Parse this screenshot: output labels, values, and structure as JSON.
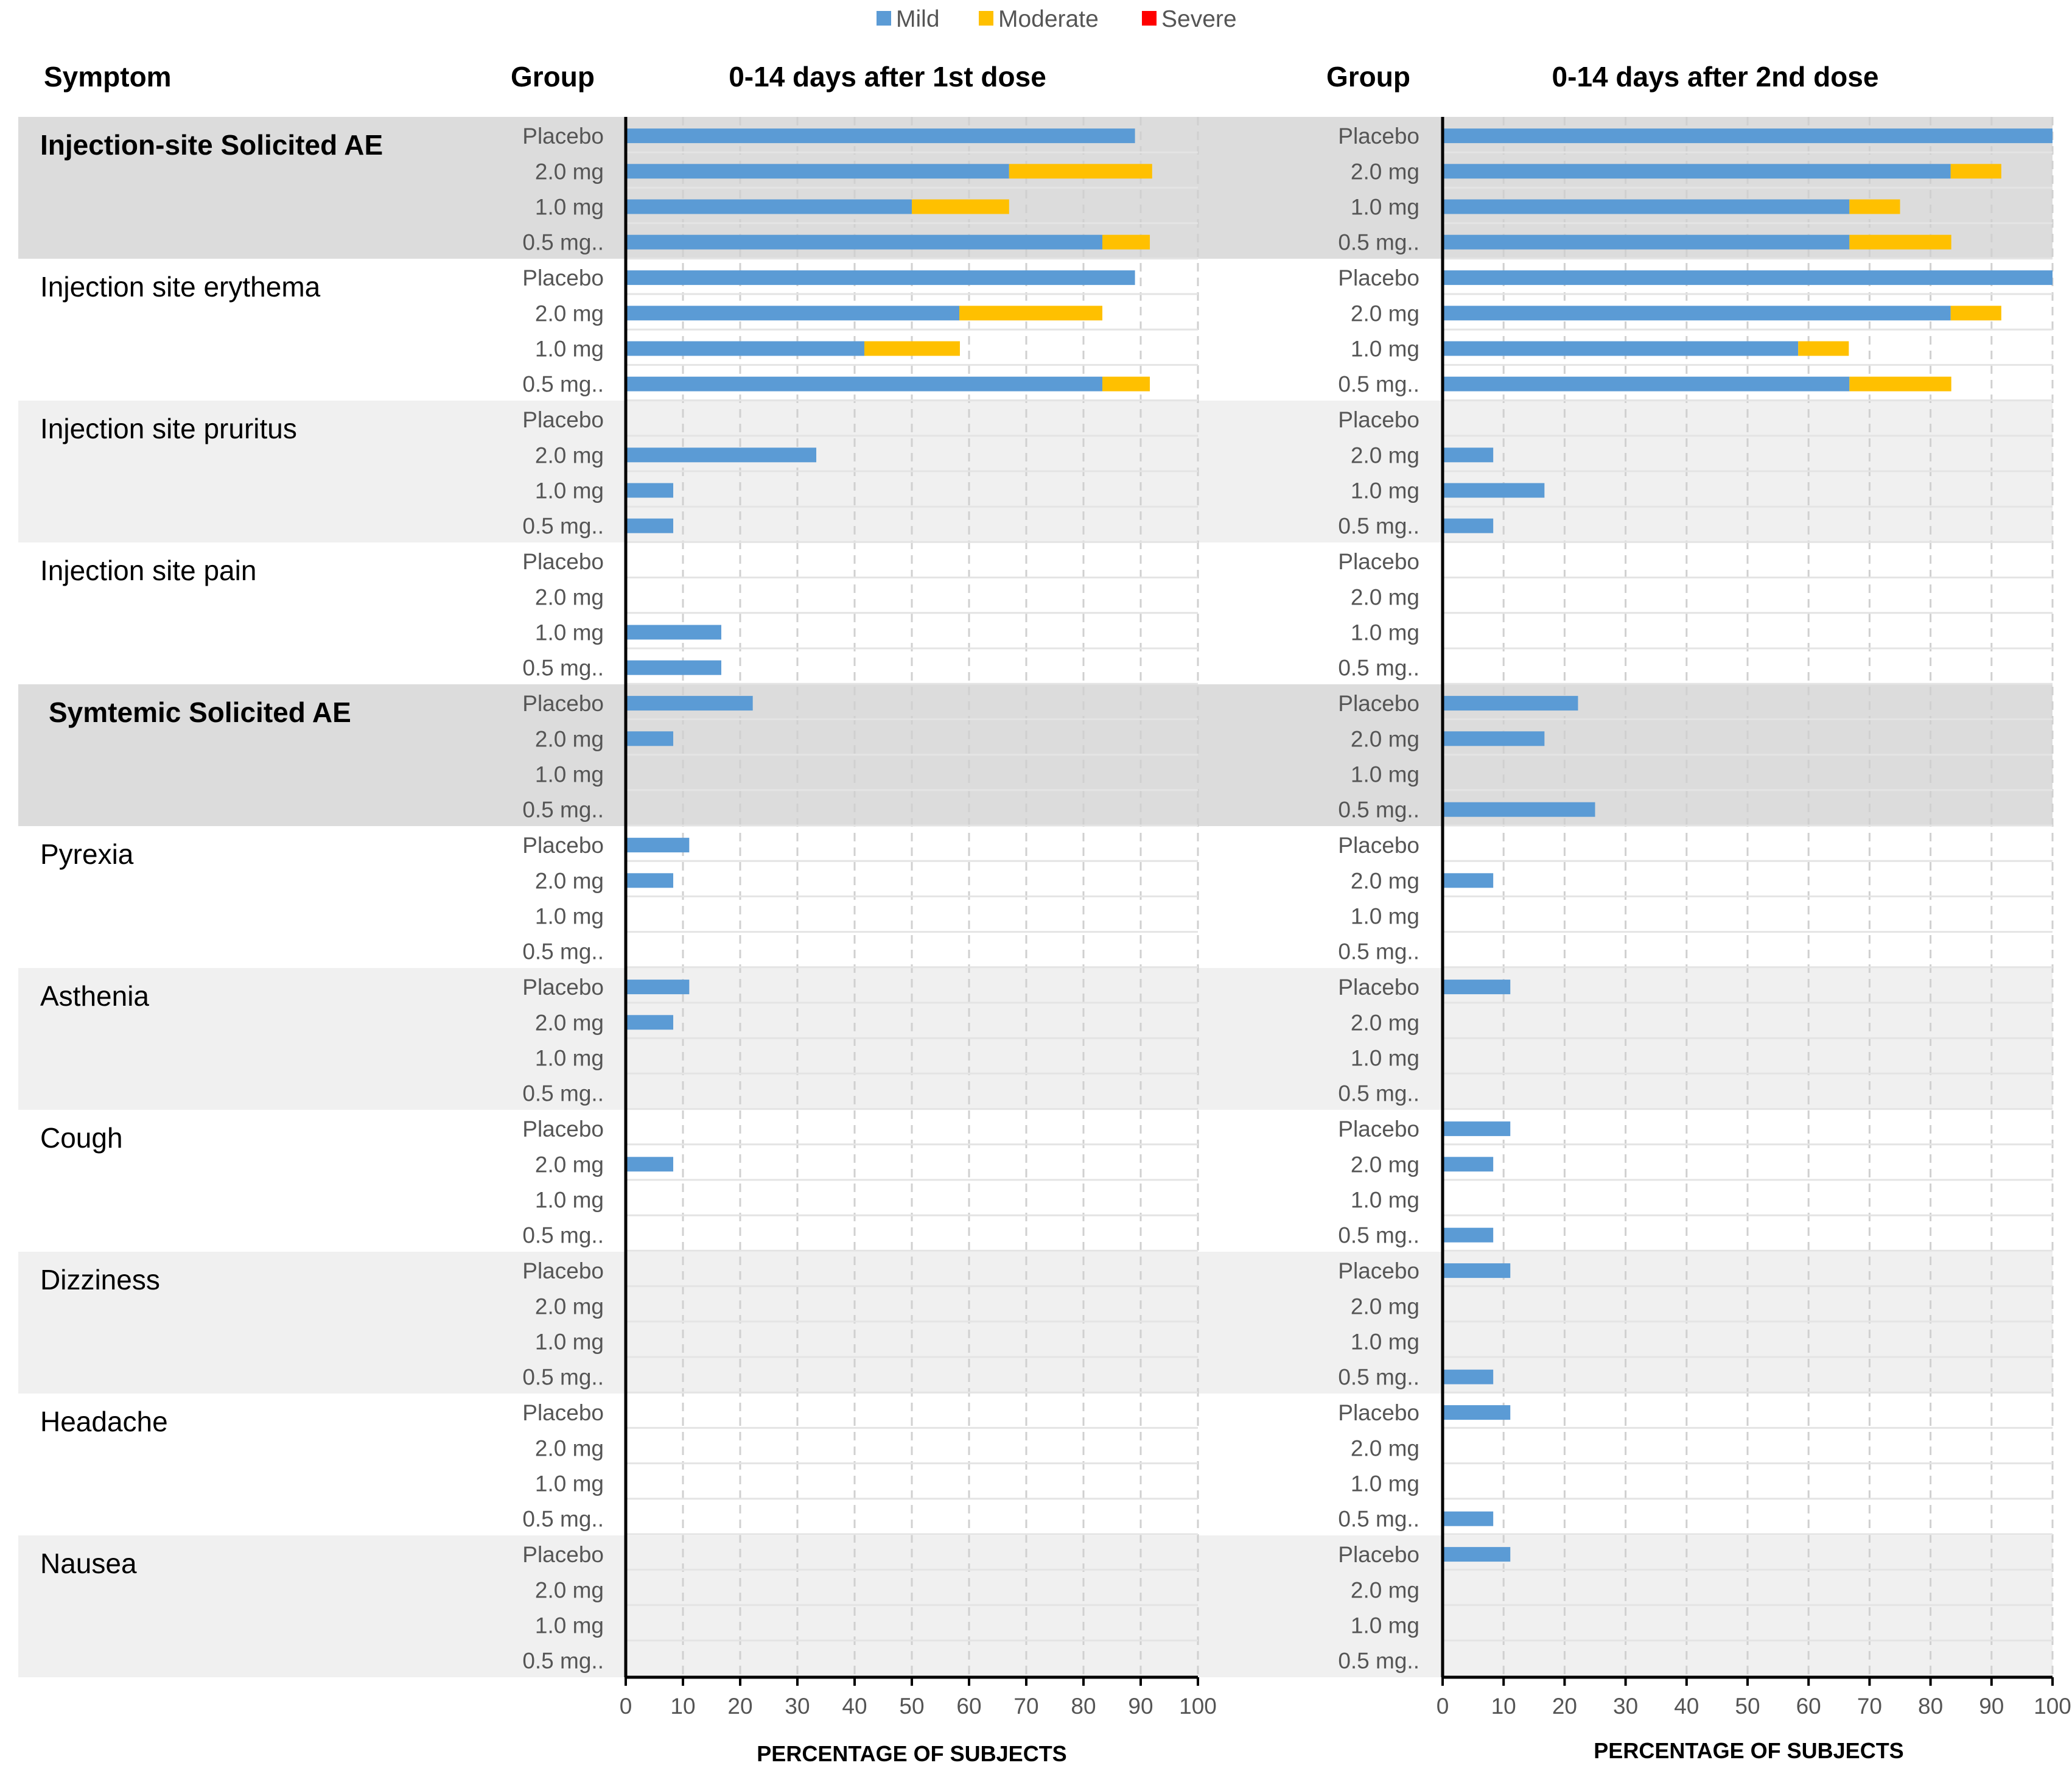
{
  "legend": [
    {
      "label": "Mild",
      "color": "#5B9BD5"
    },
    {
      "label": "Moderate",
      "color": "#FFC000"
    },
    {
      "label": "Severe",
      "color": "#FF0000"
    }
  ],
  "headers": {
    "symptom": "Symptom",
    "group": "Group",
    "dose1_title": "0-14 days after 1st dose",
    "dose2_title": "0-14 days after 2nd dose"
  },
  "chart_data": {
    "type": "bar",
    "orientation": "horizontal",
    "stacked": true,
    "xlabel": "PERCENTAGE OF SUBJECTS",
    "xlim": [
      0,
      100
    ],
    "xticks": [
      0,
      10,
      20,
      30,
      40,
      50,
      60,
      70,
      80,
      90,
      100
    ],
    "groups": [
      "Placebo",
      "2.0 mg",
      "1.0 mg",
      "0.5 mg.."
    ],
    "series_names": [
      "Mild",
      "Moderate",
      "Severe"
    ],
    "symptoms": [
      {
        "name": "Injection-site Solicited AE",
        "bold": true,
        "shade": "dark",
        "dose1": [
          [
            89,
            0,
            0
          ],
          [
            67,
            25,
            0
          ],
          [
            50,
            17,
            0
          ],
          [
            83.3,
            8.3,
            0
          ]
        ],
        "dose2": [
          [
            100,
            0,
            0
          ],
          [
            83.3,
            8.3,
            0
          ],
          [
            66.7,
            8.3,
            0
          ],
          [
            66.7,
            16.7,
            0
          ]
        ]
      },
      {
        "name": "Injection site erythema",
        "bold": false,
        "shade": "none",
        "dose1": [
          [
            89,
            0,
            0
          ],
          [
            58.3,
            25,
            0
          ],
          [
            41.7,
            16.7,
            0
          ],
          [
            83.3,
            8.3,
            0
          ]
        ],
        "dose2": [
          [
            100,
            0,
            0
          ],
          [
            83.3,
            8.3,
            0
          ],
          [
            58.3,
            8.3,
            0
          ],
          [
            66.7,
            16.7,
            0
          ]
        ]
      },
      {
        "name": "Injection site pruritus",
        "bold": false,
        "shade": "light",
        "dose1": [
          [
            0,
            0,
            0
          ],
          [
            33.3,
            0,
            0
          ],
          [
            8.3,
            0,
            0
          ],
          [
            8.3,
            0,
            0
          ]
        ],
        "dose2": [
          [
            0,
            0,
            0
          ],
          [
            8.3,
            0,
            0
          ],
          [
            16.7,
            0,
            0
          ],
          [
            8.3,
            0,
            0
          ]
        ]
      },
      {
        "name": "Injection site pain",
        "bold": false,
        "shade": "none",
        "dose1": [
          [
            0,
            0,
            0
          ],
          [
            0,
            0,
            0
          ],
          [
            16.7,
            0,
            0
          ],
          [
            16.7,
            0,
            0
          ]
        ],
        "dose2": [
          [
            0,
            0,
            0
          ],
          [
            0,
            0,
            0
          ],
          [
            0,
            0,
            0
          ],
          [
            0,
            0,
            0
          ]
        ]
      },
      {
        "name": "Symtemic Solicited AE",
        "bold": true,
        "shade": "dark",
        "dose1": [
          [
            22.2,
            0,
            0
          ],
          [
            8.3,
            0,
            0
          ],
          [
            0,
            0,
            0
          ],
          [
            0,
            0,
            0
          ]
        ],
        "dose2": [
          [
            22.2,
            0,
            0
          ],
          [
            16.7,
            0,
            0
          ],
          [
            0,
            0,
            0
          ],
          [
            25,
            0,
            0
          ]
        ]
      },
      {
        "name": "Pyrexia",
        "bold": false,
        "shade": "none",
        "dose1": [
          [
            11.1,
            0,
            0
          ],
          [
            8.3,
            0,
            0
          ],
          [
            0,
            0,
            0
          ],
          [
            0,
            0,
            0
          ]
        ],
        "dose2": [
          [
            0,
            0,
            0
          ],
          [
            8.3,
            0,
            0
          ],
          [
            0,
            0,
            0
          ],
          [
            0,
            0,
            0
          ]
        ]
      },
      {
        "name": "Asthenia",
        "bold": false,
        "shade": "light",
        "dose1": [
          [
            11.1,
            0,
            0
          ],
          [
            8.3,
            0,
            0
          ],
          [
            0,
            0,
            0
          ],
          [
            0,
            0,
            0
          ]
        ],
        "dose2": [
          [
            11.1,
            0,
            0
          ],
          [
            0,
            0,
            0
          ],
          [
            0,
            0,
            0
          ],
          [
            0,
            0,
            0
          ]
        ]
      },
      {
        "name": "Cough",
        "bold": false,
        "shade": "none",
        "dose1": [
          [
            0,
            0,
            0
          ],
          [
            8.3,
            0,
            0
          ],
          [
            0,
            0,
            0
          ],
          [
            0,
            0,
            0
          ]
        ],
        "dose2": [
          [
            11.1,
            0,
            0
          ],
          [
            8.3,
            0,
            0
          ],
          [
            0,
            0,
            0
          ],
          [
            8.3,
            0,
            0
          ]
        ]
      },
      {
        "name": "Dizziness",
        "bold": false,
        "shade": "light",
        "dose1": [
          [
            0,
            0,
            0
          ],
          [
            0,
            0,
            0
          ],
          [
            0,
            0,
            0
          ],
          [
            0,
            0,
            0
          ]
        ],
        "dose2": [
          [
            11.1,
            0,
            0
          ],
          [
            0,
            0,
            0
          ],
          [
            0,
            0,
            0
          ],
          [
            8.3,
            0,
            0
          ]
        ]
      },
      {
        "name": "Headache",
        "bold": false,
        "shade": "none",
        "dose1": [
          [
            0,
            0,
            0
          ],
          [
            0,
            0,
            0
          ],
          [
            0,
            0,
            0
          ],
          [
            0,
            0,
            0
          ]
        ],
        "dose2": [
          [
            11.1,
            0,
            0
          ],
          [
            0,
            0,
            0
          ],
          [
            0,
            0,
            0
          ],
          [
            8.3,
            0,
            0
          ]
        ]
      },
      {
        "name": "Nausea",
        "bold": false,
        "shade": "light",
        "dose1": [
          [
            0,
            0,
            0
          ],
          [
            0,
            0,
            0
          ],
          [
            0,
            0,
            0
          ],
          [
            0,
            0,
            0
          ]
        ],
        "dose2": [
          [
            11.1,
            0,
            0
          ],
          [
            0,
            0,
            0
          ],
          [
            0,
            0,
            0
          ],
          [
            0,
            0,
            0
          ]
        ]
      }
    ]
  }
}
